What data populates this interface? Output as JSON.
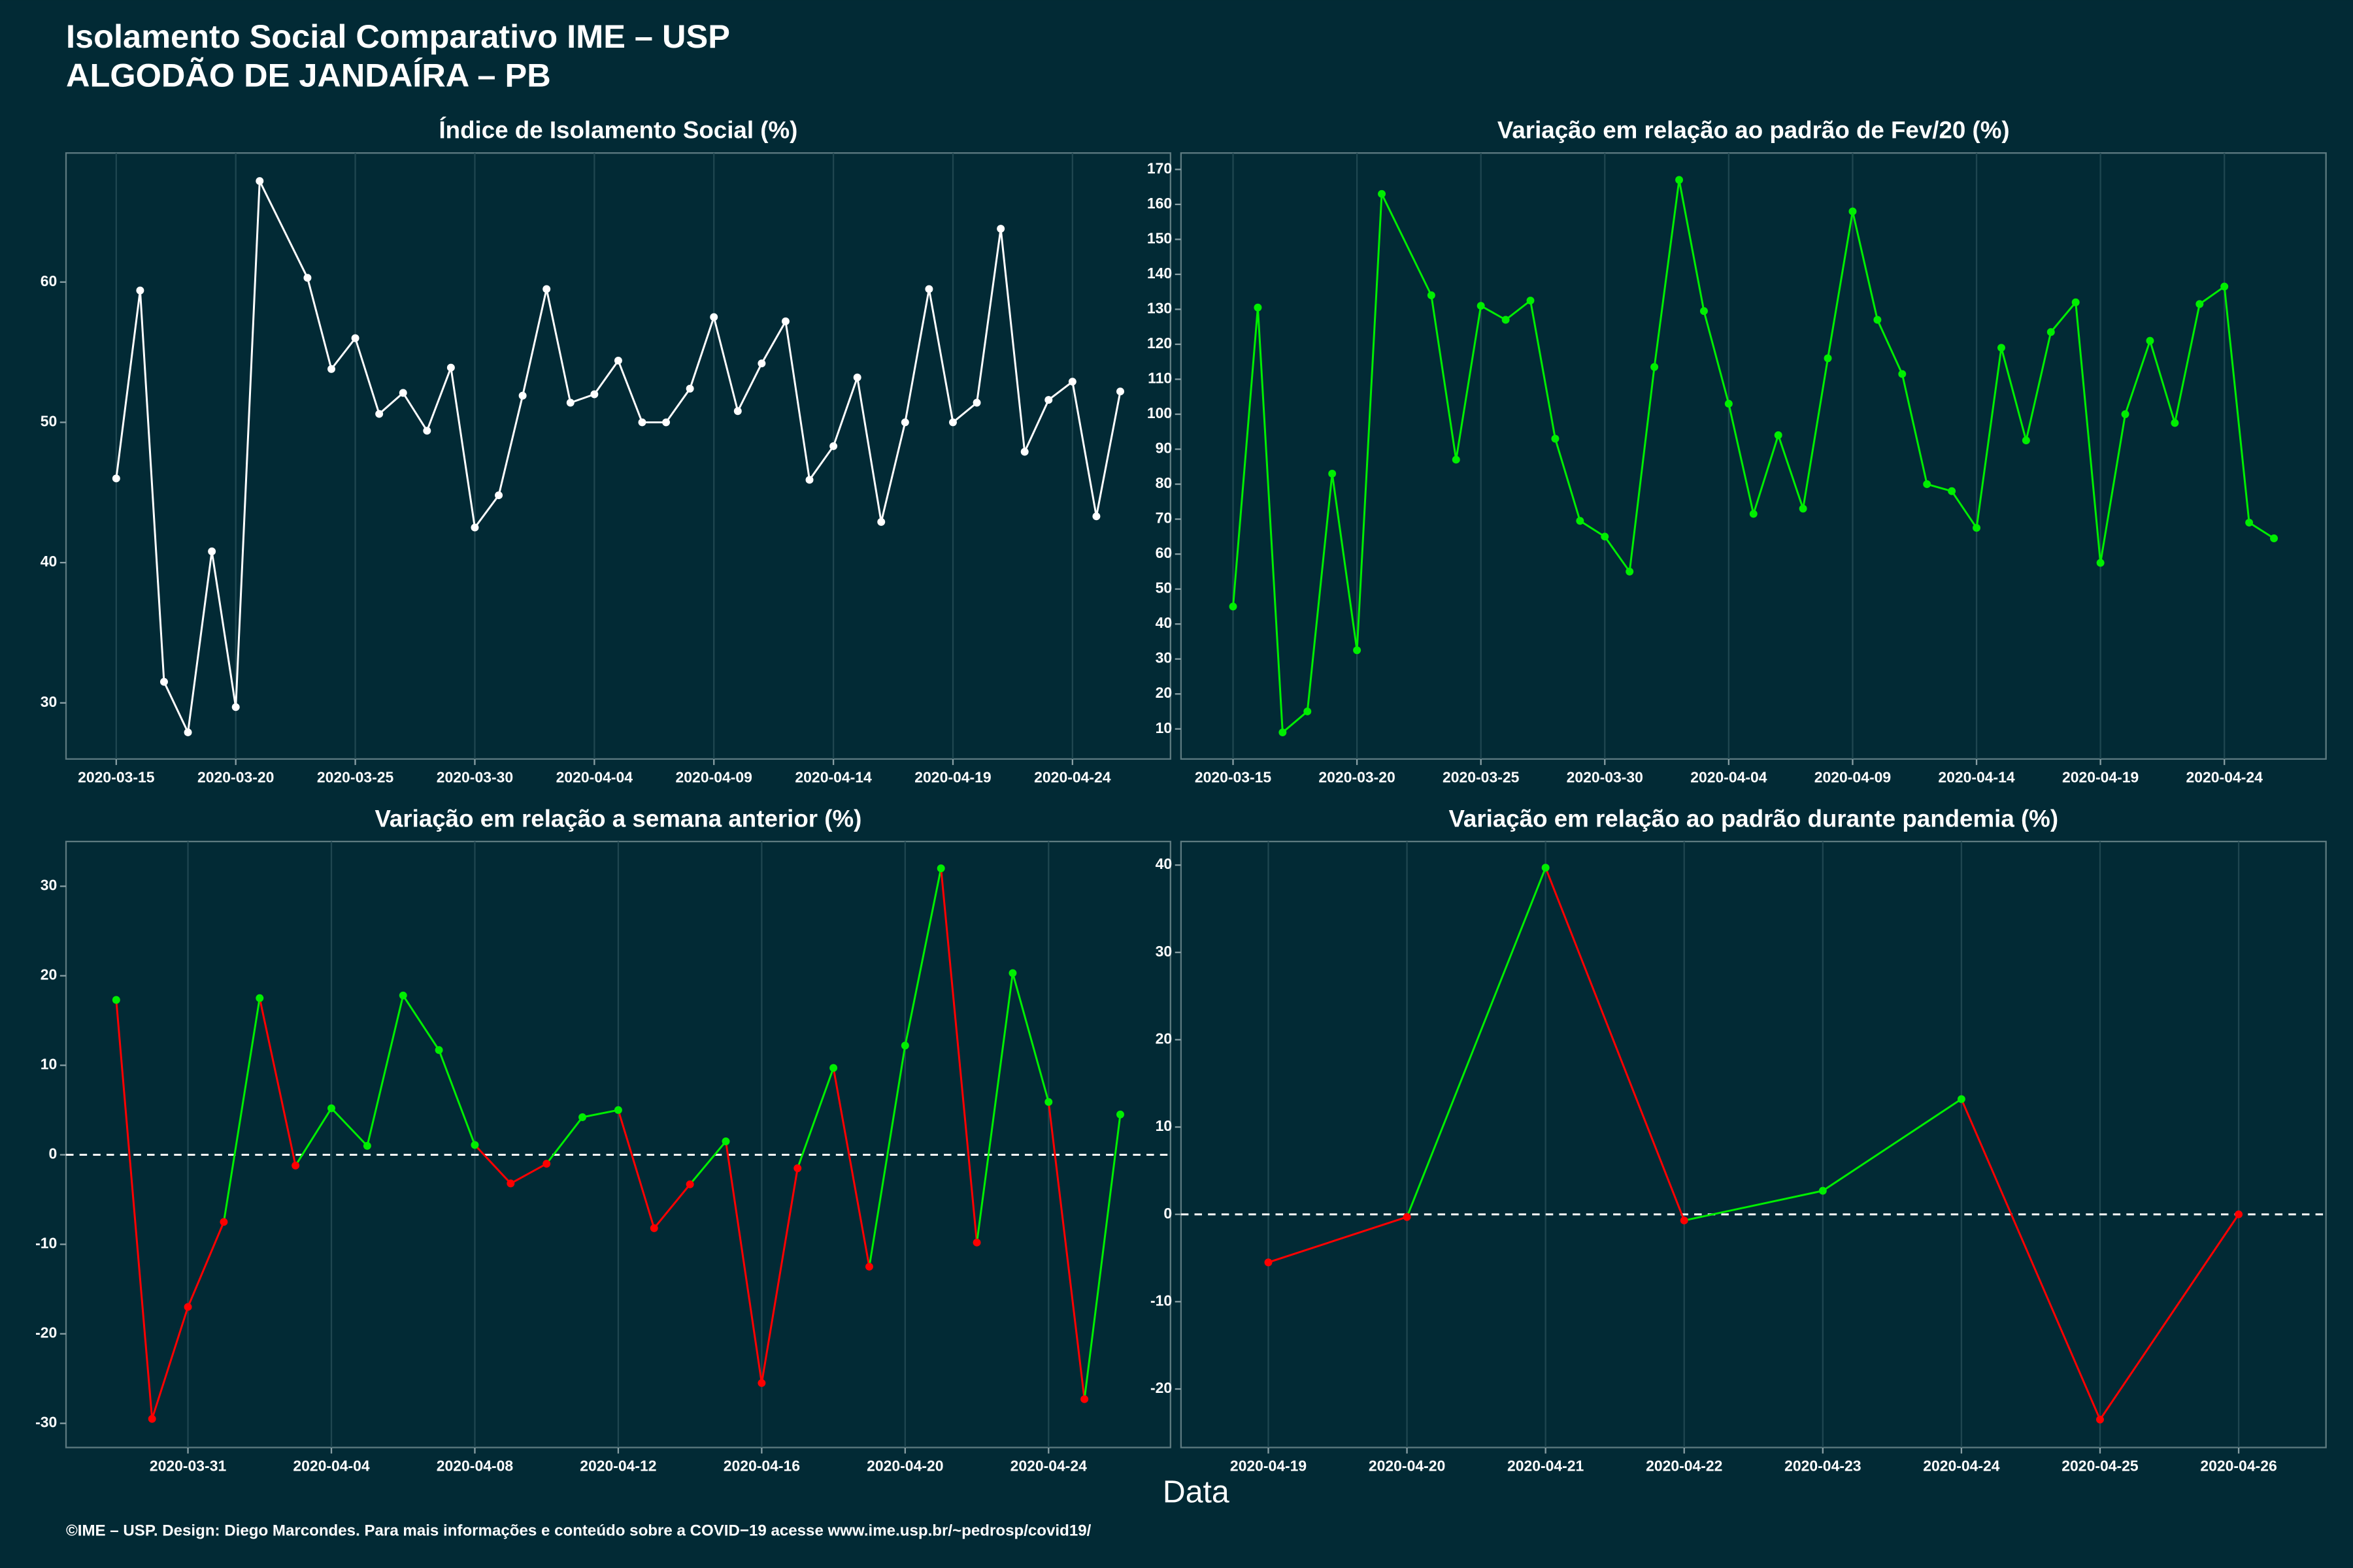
{
  "header": {
    "title": "Isolamento Social Comparativo IME – USP",
    "subtitle": "ALGODÃO DE JANDAÍRA – PB"
  },
  "x_label": "Data",
  "footer": "©IME – USP. Design: Diego Marcondes. Para mais informações e conteúdo sobre a COVID−19 acesse www.ime.usp.br/~pedrosp/covid19/",
  "chart_data": [
    {
      "type": "line",
      "title": "Índice de Isolamento Social (%)",
      "color": "#ffffff",
      "x": [
        "2020-03-15",
        "2020-03-16",
        "2020-03-17",
        "2020-03-18",
        "2020-03-19",
        "2020-03-20",
        "2020-03-21",
        "2020-03-23",
        "2020-03-24",
        "2020-03-25",
        "2020-03-26",
        "2020-03-27",
        "2020-03-28",
        "2020-03-29",
        "2020-03-30",
        "2020-03-31",
        "2020-04-01",
        "2020-04-02",
        "2020-04-03",
        "2020-04-04",
        "2020-04-05",
        "2020-04-06",
        "2020-04-07",
        "2020-04-08",
        "2020-04-09",
        "2020-04-10",
        "2020-04-11",
        "2020-04-12",
        "2020-04-13",
        "2020-04-14",
        "2020-04-15",
        "2020-04-16",
        "2020-04-17",
        "2020-04-18",
        "2020-04-19",
        "2020-04-20",
        "2020-04-21",
        "2020-04-22",
        "2020-04-23",
        "2020-04-24",
        "2020-04-25",
        "2020-04-26"
      ],
      "values": [
        46,
        59.4,
        31.5,
        27.9,
        40.8,
        29.7,
        67.2,
        60.3,
        53.8,
        56,
        50.6,
        52.1,
        49.4,
        53.9,
        42.5,
        44.8,
        51.9,
        59.5,
        51.4,
        52,
        54.4,
        50,
        50,
        52.4,
        57.5,
        50.8,
        54.2,
        57.2,
        45.9,
        48.3,
        53.2,
        42.9,
        50,
        59.5,
        50,
        51.4,
        63.8,
        47.9,
        51.6,
        52.9,
        43.3,
        52.2
      ],
      "xlim": [
        "2020-03-15",
        "2020-04-26"
      ],
      "xticks": [
        "2020-03-15",
        "2020-03-20",
        "2020-03-25",
        "2020-03-30",
        "2020-04-04",
        "2020-04-09",
        "2020-04-14",
        "2020-04-19",
        "2020-04-24"
      ],
      "ylim": [
        26,
        69.2
      ],
      "yticks": [
        30,
        40,
        50,
        60
      ]
    },
    {
      "type": "line",
      "title": "Variação em relação ao padrão de Fev/20 (%)",
      "color": "#00ee00",
      "x": [
        "2020-03-15",
        "2020-03-16",
        "2020-03-17",
        "2020-03-18",
        "2020-03-19",
        "2020-03-20",
        "2020-03-21",
        "2020-03-23",
        "2020-03-24",
        "2020-03-25",
        "2020-03-26",
        "2020-03-27",
        "2020-03-28",
        "2020-03-29",
        "2020-03-30",
        "2020-03-31",
        "2020-04-01",
        "2020-04-02",
        "2020-04-03",
        "2020-04-04",
        "2020-04-05",
        "2020-04-06",
        "2020-04-07",
        "2020-04-08",
        "2020-04-09",
        "2020-04-10",
        "2020-04-11",
        "2020-04-12",
        "2020-04-13",
        "2020-04-14",
        "2020-04-15",
        "2020-04-16",
        "2020-04-17",
        "2020-04-18",
        "2020-04-19",
        "2020-04-20",
        "2020-04-21",
        "2020-04-22",
        "2020-04-23",
        "2020-04-24",
        "2020-04-25",
        "2020-04-26"
      ],
      "values": [
        45,
        130.5,
        9,
        15,
        83,
        32.5,
        163,
        134,
        87,
        131,
        127,
        132.5,
        93,
        69.5,
        65,
        55,
        113.5,
        167,
        129.5,
        103,
        71.5,
        94,
        73,
        116,
        158,
        127,
        111.5,
        80,
        78,
        67.5,
        119,
        92.5,
        123.5,
        132,
        57.5,
        100,
        121,
        97.5,
        131.5,
        136.5,
        69,
        64.5
      ],
      "xlim": [
        "2020-03-15",
        "2020-04-26"
      ],
      "xticks": [
        "2020-03-15",
        "2020-03-20",
        "2020-03-25",
        "2020-03-30",
        "2020-04-04",
        "2020-04-09",
        "2020-04-14",
        "2020-04-19",
        "2020-04-24"
      ],
      "ylim": [
        1.4,
        174.7
      ],
      "yticks": [
        10,
        20,
        30,
        40,
        50,
        60,
        70,
        80,
        90,
        100,
        110,
        120,
        130,
        140,
        150,
        160,
        170
      ]
    },
    {
      "type": "signed-line",
      "title": "Variação em relação a semana anterior (%)",
      "positive_color": "#00ee00",
      "negative_color": "#ff0000",
      "hline": 0,
      "x": [
        "2020-03-29",
        "2020-03-30",
        "2020-03-31",
        "2020-04-01",
        "2020-04-02",
        "2020-04-03",
        "2020-04-04",
        "2020-04-05",
        "2020-04-06",
        "2020-04-07",
        "2020-04-08",
        "2020-04-09",
        "2020-04-10",
        "2020-04-11",
        "2020-04-12",
        "2020-04-13",
        "2020-04-14",
        "2020-04-15",
        "2020-04-16",
        "2020-04-17",
        "2020-04-18",
        "2020-04-19",
        "2020-04-20",
        "2020-04-21",
        "2020-04-22",
        "2020-04-23",
        "2020-04-24",
        "2020-04-25",
        "2020-04-26"
      ],
      "values": [
        17.3,
        -29.5,
        -17,
        -7.5,
        17.5,
        -1.2,
        5.2,
        1,
        17.8,
        11.7,
        1.1,
        -3.2,
        -1,
        4.2,
        5,
        -8.2,
        -3.3,
        1.5,
        -25.5,
        -1.5,
        9.7,
        -12.5,
        12.2,
        32,
        -9.8,
        20.3,
        5.9,
        -27.3,
        4.5
      ],
      "xlim": [
        "2020-03-29",
        "2020-04-26"
      ],
      "xticks": [
        "2020-03-31",
        "2020-04-04",
        "2020-04-08",
        "2020-04-12",
        "2020-04-16",
        "2020-04-20",
        "2020-04-24"
      ],
      "ylim": [
        -32.7,
        35
      ],
      "yticks": [
        -30,
        -20,
        -10,
        0,
        10,
        20,
        30
      ]
    },
    {
      "type": "signed-line",
      "title": "Variação em relação ao padrão durante pandemia (%)",
      "positive_color": "#00ee00",
      "negative_color": "#ff0000",
      "hline": 0,
      "x": [
        "2020-04-19",
        "2020-04-20",
        "2020-04-21",
        "2020-04-22",
        "2020-04-23",
        "2020-04-24",
        "2020-04-25",
        "2020-04-26"
      ],
      "values": [
        -5.5,
        -0.3,
        39.7,
        -0.7,
        2.7,
        13.2,
        -23.5,
        0
      ],
      "xlim": [
        "2020-04-19",
        "2020-04-26"
      ],
      "xticks": [
        "2020-04-19",
        "2020-04-20",
        "2020-04-21",
        "2020-04-22",
        "2020-04-23",
        "2020-04-24",
        "2020-04-25",
        "2020-04-26"
      ],
      "ylim": [
        -26.7,
        42.7
      ],
      "yticks": [
        -20,
        -10,
        0,
        10,
        20,
        30,
        40
      ]
    }
  ]
}
